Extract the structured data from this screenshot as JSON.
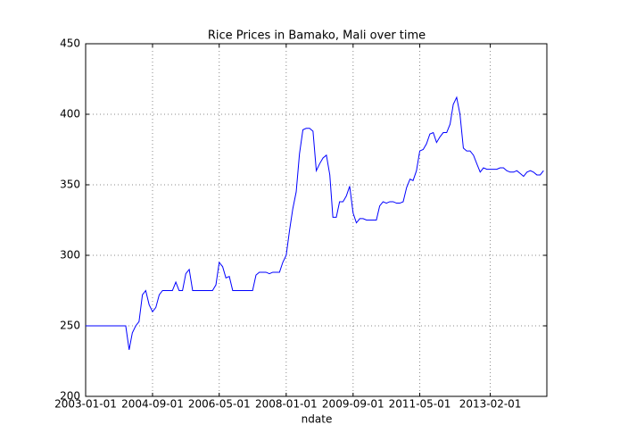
{
  "chart_data": {
    "type": "line",
    "title": "Rice Prices in Bamako, Mali over time",
    "x_label": "ndate",
    "x": [
      "2003-01-01",
      "2003-02-01",
      "2003-03-01",
      "2003-04-01",
      "2003-05-01",
      "2003-06-01",
      "2003-07-01",
      "2003-08-01",
      "2003-09-01",
      "2003-10-01",
      "2003-11-01",
      "2003-12-01",
      "2004-01-01",
      "2004-02-01",
      "2004-03-01",
      "2004-04-01",
      "2004-05-01",
      "2004-06-01",
      "2004-07-01",
      "2004-08-01",
      "2004-09-01",
      "2004-10-01",
      "2004-11-01",
      "2004-12-01",
      "2005-01-01",
      "2005-02-01",
      "2005-03-01",
      "2005-04-01",
      "2005-05-01",
      "2005-06-01",
      "2005-07-01",
      "2005-08-01",
      "2005-09-01",
      "2005-10-01",
      "2005-11-01",
      "2005-12-01",
      "2006-01-01",
      "2006-02-01",
      "2006-03-01",
      "2006-04-01",
      "2006-05-01",
      "2006-06-01",
      "2006-07-01",
      "2006-08-01",
      "2006-09-01",
      "2006-10-01",
      "2006-11-01",
      "2006-12-01",
      "2007-01-01",
      "2007-02-01",
      "2007-03-01",
      "2007-04-01",
      "2007-05-01",
      "2007-06-01",
      "2007-07-01",
      "2007-08-01",
      "2007-09-01",
      "2007-10-01",
      "2007-11-01",
      "2007-12-01",
      "2008-01-01",
      "2008-02-01",
      "2008-03-01",
      "2008-04-01",
      "2008-05-01",
      "2008-06-01",
      "2008-07-01",
      "2008-08-01",
      "2008-09-01",
      "2008-10-01",
      "2008-11-01",
      "2008-12-01",
      "2009-01-01",
      "2009-02-01",
      "2009-03-01",
      "2009-04-01",
      "2009-05-01",
      "2009-06-01",
      "2009-07-01",
      "2009-08-01",
      "2009-09-01",
      "2009-10-01",
      "2009-11-01",
      "2009-12-01",
      "2010-01-01",
      "2010-02-01",
      "2010-03-01",
      "2010-04-01",
      "2010-05-01",
      "2010-06-01",
      "2010-07-01",
      "2010-08-01",
      "2010-09-01",
      "2010-10-01",
      "2010-11-01",
      "2010-12-01",
      "2011-01-01",
      "2011-02-01",
      "2011-03-01",
      "2011-04-01",
      "2011-05-01",
      "2011-06-01",
      "2011-07-01",
      "2011-08-01",
      "2011-09-01",
      "2011-10-01",
      "2011-11-01",
      "2011-12-01",
      "2012-01-01",
      "2012-02-01",
      "2012-03-01",
      "2012-04-01",
      "2012-05-01",
      "2012-06-01",
      "2012-07-01",
      "2012-08-01",
      "2012-09-01",
      "2012-10-01",
      "2012-11-01",
      "2012-12-01",
      "2013-01-01",
      "2013-02-01",
      "2013-03-01",
      "2013-04-01",
      "2013-05-01",
      "2013-06-01",
      "2013-07-01",
      "2013-08-01",
      "2013-09-01",
      "2013-10-01",
      "2013-11-01",
      "2013-12-01",
      "2014-01-01",
      "2014-02-01",
      "2014-03-01",
      "2014-04-01",
      "2014-05-01",
      "2014-06-01"
    ],
    "series": [
      {
        "color": "#0000ff",
        "values": [
          250,
          250,
          250,
          250,
          250,
          250,
          250,
          250,
          250,
          250,
          250,
          250,
          250,
          233,
          245,
          250,
          253,
          272,
          275,
          265,
          260,
          263,
          272,
          275,
          275,
          275,
          275,
          281,
          275,
          275,
          287,
          290,
          275,
          275,
          275,
          275,
          275,
          275,
          275,
          279,
          295,
          292,
          284,
          285,
          275,
          275,
          275,
          275,
          275,
          275,
          275,
          286,
          288,
          288,
          288,
          287,
          288,
          288,
          288,
          295,
          300,
          318,
          333,
          345,
          372,
          389,
          390,
          390,
          388,
          360,
          365,
          369,
          371,
          357,
          327,
          327,
          338,
          338,
          342,
          349,
          330,
          323,
          326,
          326,
          325,
          325,
          325,
          325,
          335,
          338,
          337,
          338,
          338,
          337,
          337,
          338,
          348,
          354,
          353,
          360,
          374,
          375,
          379,
          386,
          387,
          380,
          384,
          387,
          387,
          393,
          407,
          412,
          400,
          376,
          374,
          374,
          371,
          365,
          359,
          362,
          361,
          361,
          361,
          361,
          362,
          362,
          360,
          359,
          359,
          360,
          358,
          356,
          359,
          360,
          359,
          357,
          357,
          360
        ]
      }
    ],
    "xlim": [
      "2003-01-01",
      "2014-07-01"
    ],
    "xticks": [
      "2003-01-01",
      "2004-09-01",
      "2006-05-01",
      "2008-01-01",
      "2009-09-01",
      "2011-05-01",
      "2013-02-01"
    ],
    "ylim": [
      200,
      450
    ],
    "yticks": [
      200,
      250,
      300,
      350,
      400,
      450
    ],
    "grid": true
  }
}
